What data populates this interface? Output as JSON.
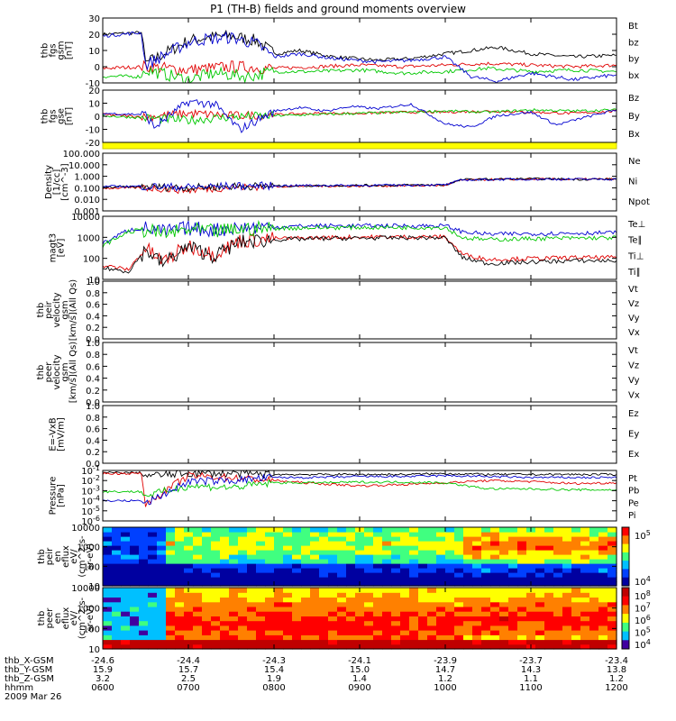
{
  "title": "P1 (TH-B) fields and ground moments overview",
  "colors": {
    "black": "#000000",
    "red": "#e00000",
    "green": "#00c800",
    "blue": "#0000d0",
    "yellow": "#ffff00"
  },
  "time_axis": {
    "ticks": [
      "0600",
      "0700",
      "0800",
      "0900",
      "1000",
      "1100",
      "1200"
    ],
    "start_hour": 6,
    "end_hour": 12
  },
  "footer": {
    "rows": [
      {
        "label": "thb_X-GSM",
        "values": [
          "-24.6",
          "-24.4",
          "-24.3",
          "-24.1",
          "-23.9",
          "-23.7",
          "-23.4"
        ]
      },
      {
        "label": "thb_Y-GSM",
        "values": [
          "15.9",
          "15.7",
          "15.4",
          "15.0",
          "14.7",
          "14.3",
          "13.8"
        ]
      },
      {
        "label": "thb_Z-GSM",
        "values": [
          "3.2",
          "2.5",
          "1.9",
          "1.4",
          "1.2",
          "1.1",
          "1.2"
        ]
      },
      {
        "label": "hhmm",
        "values": [
          "0600",
          "0700",
          "0800",
          "0900",
          "1000",
          "1100",
          "1200"
        ]
      }
    ],
    "date": "2009 Mar 26"
  },
  "chart_data": [
    {
      "type": "line",
      "panel": "fgs_gsm",
      "ylabel": [
        "thb",
        "fgs",
        "gsm",
        "[nT]"
      ],
      "ylim": [
        -10,
        30
      ],
      "yticks": [
        "30",
        "20",
        "10",
        "0",
        "-10"
      ],
      "legend": [
        {
          "label": "Bt",
          "color": "black"
        },
        {
          "label": "bz",
          "color": "red"
        },
        {
          "label": "by",
          "color": "green"
        },
        {
          "label": "bx",
          "color": "blue"
        }
      ],
      "series": [
        {
          "name": "Bt",
          "x": [
            6.0,
            6.45,
            6.5,
            7.0,
            7.2,
            7.5,
            7.8,
            8.0,
            8.3,
            8.7,
            9.2,
            9.6,
            10.0,
            10.3,
            10.6,
            11.0,
            11.5,
            12.0
          ],
          "y": [
            20,
            21,
            2,
            16,
            18,
            19,
            16,
            8,
            10,
            6,
            4,
            5,
            8,
            10,
            12,
            8,
            6,
            7
          ]
        },
        {
          "name": "bz",
          "x": [
            6.0,
            6.5,
            7.0,
            7.5,
            8.0,
            8.5,
            9.0,
            9.5,
            10.0,
            10.5,
            11.0,
            11.5,
            12.0
          ],
          "y": [
            -1,
            0,
            -2,
            0,
            -1,
            0,
            1,
            0,
            1,
            2,
            1,
            0,
            1
          ]
        },
        {
          "name": "by",
          "x": [
            6.0,
            6.45,
            6.5,
            7.0,
            7.3,
            7.7,
            8.0,
            8.5,
            9.0,
            9.5,
            10.0,
            10.5,
            11.0,
            11.5,
            12.0
          ],
          "y": [
            -6,
            -6,
            -2,
            -8,
            -4,
            -6,
            -3,
            -3,
            -2,
            -4,
            -3,
            -1,
            -3,
            -2,
            -3
          ]
        },
        {
          "name": "bx",
          "x": [
            6.0,
            6.45,
            6.5,
            7.0,
            7.2,
            7.5,
            7.8,
            8.0,
            8.3,
            8.7,
            9.2,
            9.6,
            10.0,
            10.3,
            10.6,
            11.0,
            11.5,
            12.0
          ],
          "y": [
            19,
            21,
            1,
            15,
            17,
            18,
            14,
            6,
            8,
            5,
            3,
            4,
            6,
            -6,
            -9,
            -4,
            -8,
            -5
          ]
        }
      ]
    },
    {
      "type": "line",
      "panel": "fgs_gse",
      "ylabel": [
        "thb",
        "fgs",
        "gse",
        "[nT]"
      ],
      "ylim": [
        -25,
        20
      ],
      "yticks": [
        "20",
        "10",
        "0",
        "-10",
        "-20"
      ],
      "legend": [
        {
          "label": "Bz",
          "color": "red"
        },
        {
          "label": "By",
          "color": "green"
        },
        {
          "label": "Bx",
          "color": "blue"
        }
      ],
      "series": [
        {
          "name": "Bz",
          "x": [
            6.0,
            6.5,
            7.0,
            7.5,
            8.0,
            8.5,
            9.0,
            9.5,
            10.0,
            10.5,
            11.0,
            11.5,
            12.0
          ],
          "y": [
            -1,
            -3,
            0,
            -2,
            -1,
            0,
            0,
            1,
            1,
            2,
            1,
            0,
            2
          ]
        },
        {
          "name": "By",
          "x": [
            6.0,
            6.5,
            7.0,
            7.5,
            8.0,
            8.5,
            9.0,
            9.5,
            10.0,
            10.5,
            11.0,
            11.5,
            12.0
          ],
          "y": [
            -2,
            -4,
            -6,
            -3,
            -2,
            -1,
            0,
            1,
            2,
            1,
            3,
            2,
            3
          ]
        },
        {
          "name": "Bx",
          "x": [
            6.0,
            6.5,
            6.6,
            7.0,
            7.3,
            7.6,
            8.0,
            8.3,
            8.6,
            8.9,
            9.2,
            9.6,
            10.0,
            10.3,
            10.6,
            11.0,
            11.3,
            11.6,
            12.0
          ],
          "y": [
            0,
            -1,
            -12,
            10,
            8,
            -14,
            2,
            5,
            2,
            6,
            4,
            8,
            -9,
            -12,
            -2,
            1,
            -10,
            -4,
            3
          ]
        }
      ]
    },
    {
      "type": "line",
      "panel": "density",
      "yscale": "log",
      "ylabel": [
        "Density",
        "[1/cc]",
        "[cm^-3]"
      ],
      "ylim": [
        0.0005,
        200
      ],
      "yticks": [
        "100.000",
        "10.000",
        "1.000",
        "0.100",
        "0.010",
        "0.001"
      ],
      "legend": [
        {
          "label": "Ne",
          "color": "red"
        },
        {
          "label": "Ni",
          "color": "black"
        },
        {
          "label": "Npot",
          "color": "blue"
        }
      ],
      "series": [
        {
          "name": "Ne",
          "x": [
            6.0,
            6.5,
            7.0,
            7.5,
            8.0,
            8.5,
            9.0,
            9.5,
            10.0,
            10.2,
            10.5,
            11.0,
            11.5,
            12.0
          ],
          "y": [
            0.08,
            0.09,
            0.05,
            0.1,
            0.12,
            0.13,
            0.13,
            0.14,
            0.15,
            0.5,
            0.55,
            0.6,
            0.6,
            0.6
          ]
        },
        {
          "name": "Ni",
          "x": [
            6.0,
            6.5,
            7.0,
            7.5,
            8.0,
            8.5,
            9.0,
            9.5,
            10.0,
            10.2,
            10.5,
            11.0,
            11.5,
            12.0
          ],
          "y": [
            0.1,
            0.11,
            0.09,
            0.12,
            0.13,
            0.14,
            0.15,
            0.16,
            0.17,
            0.55,
            0.6,
            0.65,
            0.6,
            0.6
          ]
        },
        {
          "name": "Npot",
          "x": [
            6.0,
            6.5,
            7.0,
            7.5,
            8.0,
            8.5,
            9.0,
            9.5,
            10.0,
            10.2,
            10.5,
            11.0,
            11.5,
            12.0
          ],
          "y": [
            0.12,
            0.12,
            0.1,
            0.13,
            0.14,
            0.15,
            0.15,
            0.16,
            0.17,
            0.5,
            0.55,
            0.6,
            0.6,
            0.6
          ]
        }
      ]
    },
    {
      "type": "line",
      "panel": "temperature",
      "yscale": "log",
      "ylabel": [
        "magt3",
        "[eV]"
      ],
      "ylim": [
        8,
        12000
      ],
      "yticks": [
        "10000",
        "1000",
        "100",
        "10"
      ],
      "legend": [
        {
          "label": "Te⊥",
          "color": "red"
        },
        {
          "label": "Te∥",
          "color": "black"
        },
        {
          "label": "Ti⊥",
          "color": "blue"
        },
        {
          "label": "Ti∥",
          "color": "green"
        }
      ],
      "series": [
        {
          "name": "Te⊥",
          "x": [
            6.0,
            6.3,
            6.5,
            6.7,
            7.0,
            7.3,
            7.6,
            8.0,
            8.5,
            9.0,
            9.5,
            10.0,
            10.2,
            10.5,
            11.0,
            11.5,
            12.0
          ],
          "y": [
            40,
            25,
            300,
            60,
            400,
            150,
            700,
            900,
            1000,
            1100,
            1100,
            1100,
            150,
            80,
            90,
            100,
            100
          ]
        },
        {
          "name": "Te∥",
          "x": [
            6.0,
            6.3,
            6.5,
            6.7,
            7.0,
            7.3,
            7.6,
            8.0,
            8.5,
            9.0,
            9.5,
            10.0,
            10.2,
            10.5,
            11.0,
            11.5,
            12.0
          ],
          "y": [
            30,
            20,
            250,
            50,
            350,
            120,
            600,
            800,
            900,
            950,
            1000,
            1000,
            100,
            50,
            60,
            70,
            70
          ]
        },
        {
          "name": "Ti⊥",
          "x": [
            6.0,
            6.3,
            6.5,
            6.7,
            7.0,
            7.3,
            7.6,
            8.0,
            8.5,
            9.0,
            9.5,
            10.0,
            10.2,
            10.5,
            11.0,
            11.5,
            12.0
          ],
          "y": [
            500,
            2500,
            3000,
            2000,
            3000,
            2500,
            3200,
            3500,
            4000,
            4000,
            4000,
            4000,
            2000,
            1500,
            1600,
            1700,
            1800
          ]
        },
        {
          "name": "Ti∥",
          "x": [
            6.0,
            6.3,
            6.5,
            6.7,
            7.0,
            7.3,
            7.6,
            8.0,
            8.5,
            9.0,
            9.5,
            10.0,
            10.2,
            10.5,
            11.0,
            11.5,
            12.0
          ],
          "y": [
            400,
            2000,
            2500,
            1500,
            2500,
            2000,
            2700,
            3000,
            3200,
            3300,
            3300,
            3300,
            1000,
            800,
            900,
            950,
            1000
          ]
        }
      ]
    },
    {
      "type": "line",
      "panel": "peir_velocity",
      "ylabel": [
        "thb",
        "peir",
        "velocity",
        "gsm",
        "[km/s](All Qs)"
      ],
      "ylim": [
        0,
        1
      ],
      "yticks": [
        "1.0",
        "0.8",
        "0.6",
        "0.4",
        "0.2",
        "0.0"
      ],
      "legend": [
        {
          "label": "Vt",
          "color": "black"
        },
        {
          "label": "Vz",
          "color": "red"
        },
        {
          "label": "Vy",
          "color": "green"
        },
        {
          "label": "Vx",
          "color": "blue"
        }
      ],
      "series": []
    },
    {
      "type": "line",
      "panel": "peer_velocity",
      "ylabel": [
        "thb",
        "peer",
        "velocity",
        "gsm",
        "[km/s](All Qs)"
      ],
      "ylim": [
        0,
        1
      ],
      "yticks": [
        "1.0",
        "0.8",
        "0.6",
        "0.4",
        "0.2",
        "0.0"
      ],
      "legend": [
        {
          "label": "Vt",
          "color": "black"
        },
        {
          "label": "Vz",
          "color": "red"
        },
        {
          "label": "Vy",
          "color": "green"
        },
        {
          "label": "Vx",
          "color": "blue"
        }
      ],
      "series": []
    },
    {
      "type": "line",
      "panel": "efield",
      "ylabel": [
        "E=-VxB",
        "[mV/m]"
      ],
      "ylim": [
        0,
        1
      ],
      "yticks": [
        "1.0",
        "0.8",
        "0.6",
        "0.4",
        "0.2",
        "0.0"
      ],
      "legend": [
        {
          "label": "Ez",
          "color": "red"
        },
        {
          "label": "Ey",
          "color": "green"
        },
        {
          "label": "Ex",
          "color": "blue"
        }
      ],
      "series": []
    },
    {
      "type": "line",
      "panel": "pressure",
      "yscale": "log",
      "ylabel": [
        "Pressure",
        "[nPa]"
      ],
      "ylim": [
        1e-06,
        0.1
      ],
      "yticks": [
        "10^-1",
        "10^-2",
        "10^-3",
        "10^-4",
        "10^-5",
        "10^-6"
      ],
      "legend": [
        {
          "label": "Pt",
          "color": "black"
        },
        {
          "label": "Pb",
          "color": "red"
        },
        {
          "label": "Pe",
          "color": "green"
        },
        {
          "label": "Pi",
          "color": "blue"
        }
      ],
      "series": [
        {
          "name": "Pt",
          "x": [
            6.0,
            6.45,
            6.5,
            7.0,
            7.5,
            8.0,
            8.5,
            9.0,
            9.5,
            10.0,
            10.5,
            11.0,
            11.5,
            12.0
          ],
          "y": [
            0.06,
            0.06,
            0.03,
            0.05,
            0.05,
            0.04,
            0.04,
            0.04,
            0.04,
            0.05,
            0.04,
            0.04,
            0.04,
            0.04
          ]
        },
        {
          "name": "Pb",
          "x": [
            6.0,
            6.45,
            6.5,
            7.0,
            7.5,
            8.0,
            8.5,
            9.0,
            9.5,
            10.0,
            10.5,
            11.0,
            11.5,
            12.0
          ],
          "y": [
            0.05,
            0.05,
            5e-05,
            0.03,
            0.02,
            0.01,
            0.005,
            0.003,
            0.004,
            0.006,
            0.01,
            0.008,
            0.005,
            0.006
          ]
        },
        {
          "name": "Pe",
          "x": [
            6.0,
            6.45,
            6.5,
            7.0,
            7.5,
            8.0,
            8.5,
            9.0,
            9.5,
            10.0,
            10.5,
            11.0,
            11.5,
            12.0
          ],
          "y": [
            0.0008,
            0.0008,
            0.0003,
            0.003,
            0.002,
            0.006,
            0.006,
            0.007,
            0.007,
            0.006,
            0.0015,
            0.0015,
            0.0012,
            0.0012
          ]
        },
        {
          "name": "Pi",
          "x": [
            6.0,
            6.45,
            6.5,
            7.0,
            7.5,
            8.0,
            8.5,
            9.0,
            9.5,
            10.0,
            10.5,
            11.0,
            11.5,
            12.0
          ],
          "y": [
            0.0001,
            0.0001,
            5e-05,
            0.008,
            0.01,
            0.02,
            0.02,
            0.025,
            0.025,
            0.03,
            0.025,
            0.02,
            0.02,
            0.02
          ]
        }
      ]
    },
    {
      "type": "heatmap",
      "panel": "peir_energy_flux",
      "yscale": "log",
      "ylabel": [
        "thb",
        "peir",
        "en",
        "eflux",
        "eV/",
        "(cm^2-s-",
        "sr-eV)"
      ],
      "ylim": [
        10,
        20000
      ],
      "yticks": [
        "10000",
        "1000",
        "100",
        "10"
      ],
      "colorbar_ticks": [
        "10^5",
        "10^4"
      ]
    },
    {
      "type": "heatmap",
      "panel": "peer_energy_flux",
      "yscale": "log",
      "ylabel": [
        "thb",
        "peer",
        "en",
        "eflux",
        "eV/",
        "(cm^2-s-",
        "sr-eV)"
      ],
      "ylim": [
        10,
        20000
      ],
      "yticks": [
        "10000",
        "1000",
        "100",
        "10"
      ],
      "colorbar_ticks": [
        "10^8",
        "10^7",
        "10^6",
        "10^5",
        "10^4"
      ]
    }
  ]
}
